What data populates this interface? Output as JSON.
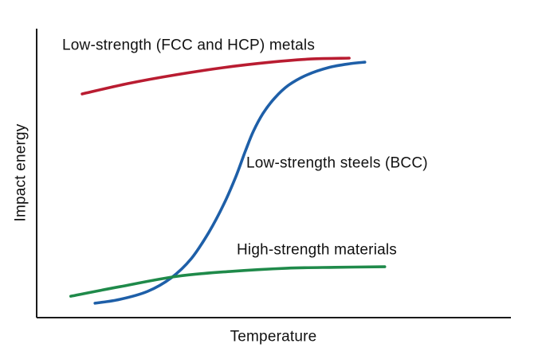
{
  "chart_data": {
    "type": "line",
    "title": "",
    "xlabel": "Temperature",
    "ylabel": "Impact energy",
    "x_range": [
      0,
      1
    ],
    "y_range": [
      0,
      1
    ],
    "grid": false,
    "legend_position": "inline-annotations",
    "axis_color": "#1a1a1a",
    "notes": "Qualitative sketch: no tick marks or numeric scales; curve labels are placed inline next to each curve.",
    "series": [
      {
        "name": "low-strength-fcc-hcp-metals",
        "label": "Low-strength (FCC and HCP) metals",
        "color": "#b91c31",
        "points": [
          [
            0.096,
            0.774
          ],
          [
            0.192,
            0.81
          ],
          [
            0.292,
            0.84
          ],
          [
            0.393,
            0.865
          ],
          [
            0.494,
            0.884
          ],
          [
            0.578,
            0.895
          ],
          [
            0.659,
            0.898
          ]
        ]
      },
      {
        "name": "low-strength-steels-bcc",
        "label": "Low-strength steels (BCC)",
        "color": "#1e5fa8",
        "points": [
          [
            0.123,
            0.05
          ],
          [
            0.175,
            0.063
          ],
          [
            0.234,
            0.091
          ],
          [
            0.284,
            0.138
          ],
          [
            0.326,
            0.204
          ],
          [
            0.363,
            0.295
          ],
          [
            0.395,
            0.394
          ],
          [
            0.42,
            0.488
          ],
          [
            0.44,
            0.576
          ],
          [
            0.457,
            0.645
          ],
          [
            0.477,
            0.706
          ],
          [
            0.502,
            0.76
          ],
          [
            0.531,
            0.804
          ],
          [
            0.57,
            0.84
          ],
          [
            0.617,
            0.866
          ],
          [
            0.662,
            0.879
          ],
          [
            0.692,
            0.884
          ]
        ]
      },
      {
        "name": "high-strength-materials",
        "label": "High-strength materials",
        "color": "#1f8a4a",
        "points": [
          [
            0.072,
            0.074
          ],
          [
            0.175,
            0.107
          ],
          [
            0.296,
            0.143
          ],
          [
            0.41,
            0.16
          ],
          [
            0.528,
            0.171
          ],
          [
            0.629,
            0.174
          ],
          [
            0.734,
            0.176
          ]
        ]
      }
    ]
  }
}
